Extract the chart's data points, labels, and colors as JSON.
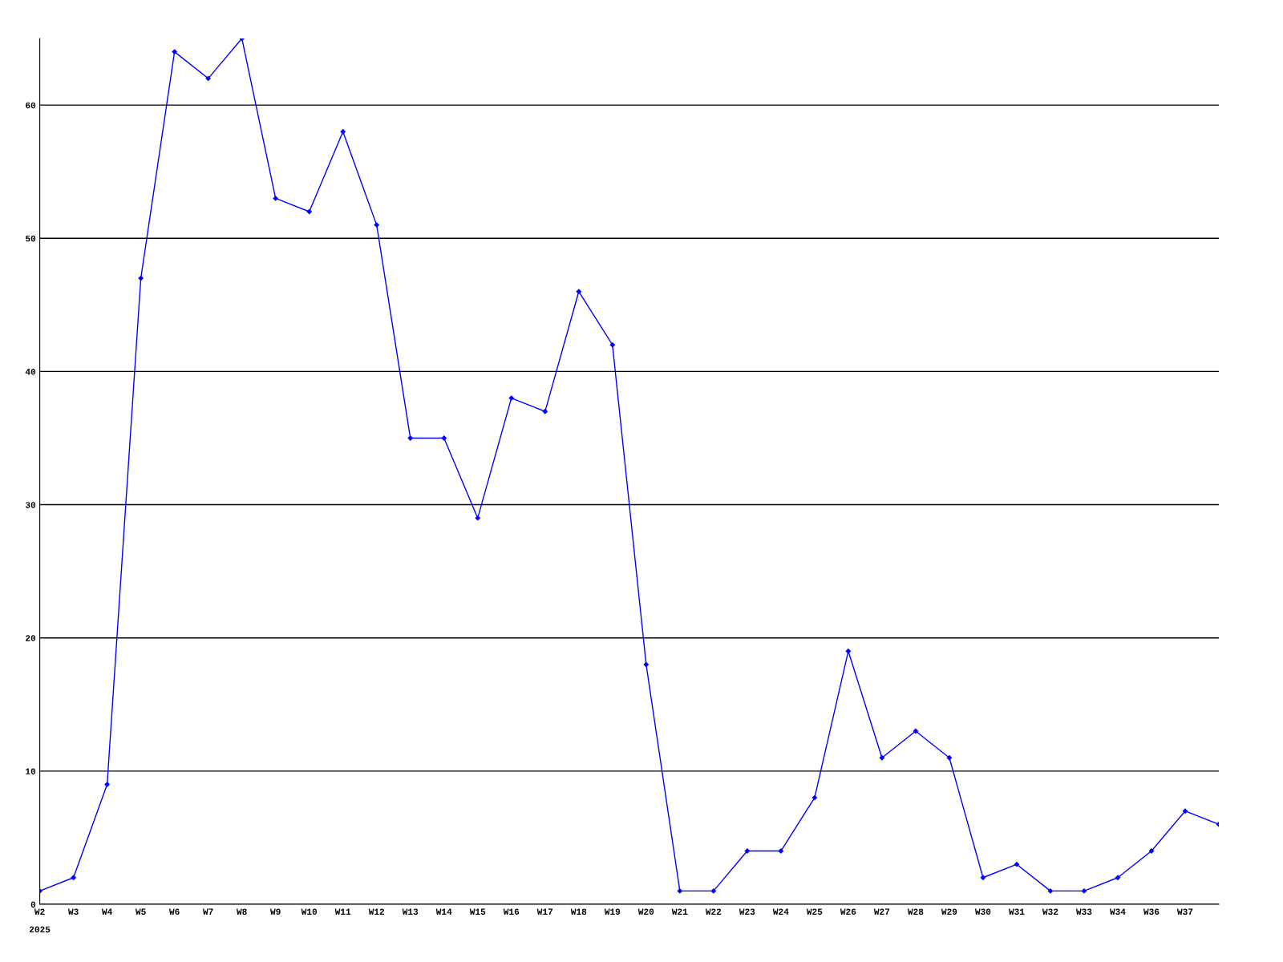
{
  "chart_data": {
    "type": "line",
    "categories": [
      "W2",
      "W3",
      "W4",
      "W5",
      "W6",
      "W7",
      "W8",
      "W9",
      "W10",
      "W11",
      "W12",
      "W13",
      "W14",
      "W15",
      "W16",
      "W17",
      "W18",
      "W19",
      "W20",
      "W21",
      "W22",
      "W23",
      "W24",
      "W25",
      "W26",
      "W27",
      "W28",
      "W29",
      "W30",
      "W31",
      "W32",
      "W33",
      "W34",
      "W36",
      "W37",
      null
    ],
    "series": [
      {
        "color": "#0000ff",
        "values": [
          1,
          2,
          9,
          47,
          64,
          62,
          65,
          53,
          52,
          58,
          51,
          35,
          35,
          29,
          38,
          37,
          46,
          42,
          18,
          1,
          1,
          4,
          4,
          8,
          19,
          11,
          13,
          11,
          2,
          3,
          1,
          1,
          2,
          4,
          7,
          6
        ]
      }
    ],
    "ylim": [
      0,
      65
    ],
    "yticks": [
      0,
      10,
      20,
      30,
      40,
      50,
      60
    ],
    "grid": "y",
    "marker": "diamond",
    "line_style": "solid",
    "legend": false,
    "annotations": [
      "2025"
    ]
  }
}
